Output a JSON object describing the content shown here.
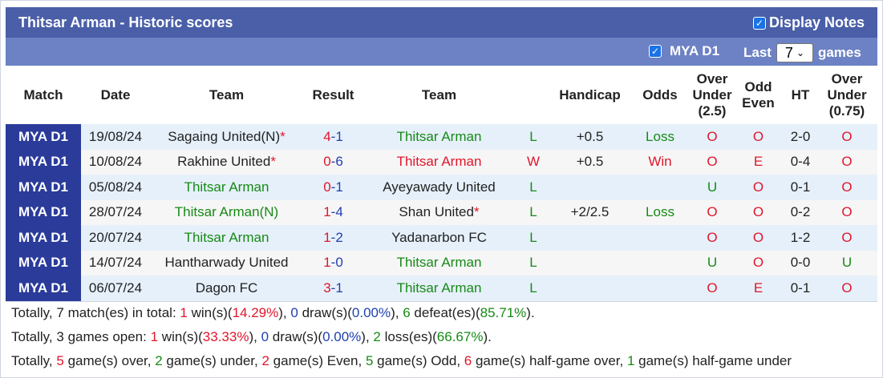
{
  "header": {
    "title": "Thitsar Arman - Historic scores",
    "display_notes_label": "Display Notes",
    "display_notes_checked": true
  },
  "filter": {
    "league_label": "MYA D1",
    "league_checked": true,
    "last_label": "Last",
    "games_value": "7",
    "games_label": "games"
  },
  "columns": [
    "Match",
    "Date",
    "Team",
    "Result",
    "Team",
    "",
    "Handicap",
    "Odds",
    "Over Under (2.5)",
    "Odd Even",
    "HT",
    "Over Under (0.75)"
  ],
  "rows": [
    {
      "league": "MYA D1",
      "date": "19/08/24",
      "home": "Sagaing United(N)",
      "home_star": "*",
      "home_color": "normal",
      "score_home": "4",
      "score_away": "1",
      "away": "Thitsar Arman",
      "away_star": "",
      "away_color": "green",
      "wl": "L",
      "handicap": "+0.5",
      "odds": "Loss",
      "ou": "O",
      "oe": "O",
      "ht": "2-0",
      "ou2": "O"
    },
    {
      "league": "MYA D1",
      "date": "10/08/24",
      "home": "Rakhine United",
      "home_star": "*",
      "home_color": "normal",
      "score_home": "0",
      "score_away": "6",
      "away": "Thitsar Arman",
      "away_star": "",
      "away_color": "red",
      "wl": "W",
      "handicap": "+0.5",
      "odds": "Win",
      "ou": "O",
      "oe": "E",
      "ht": "0-4",
      "ou2": "O"
    },
    {
      "league": "MYA D1",
      "date": "05/08/24",
      "home": "Thitsar Arman",
      "home_star": "",
      "home_color": "green",
      "score_home": "0",
      "score_away": "1",
      "away": "Ayeyawady United",
      "away_star": "",
      "away_color": "normal",
      "wl": "L",
      "handicap": "",
      "odds": "",
      "ou": "U",
      "oe": "O",
      "ht": "0-1",
      "ou2": "O"
    },
    {
      "league": "MYA D1",
      "date": "28/07/24",
      "home": "Thitsar Arman(N)",
      "home_star": "",
      "home_color": "green",
      "score_home": "1",
      "score_away": "4",
      "away": "Shan United",
      "away_star": "*",
      "away_color": "normal",
      "wl": "L",
      "handicap": "+2/2.5",
      "odds": "Loss",
      "ou": "O",
      "oe": "O",
      "ht": "0-2",
      "ou2": "O"
    },
    {
      "league": "MYA D1",
      "date": "20/07/24",
      "home": "Thitsar Arman",
      "home_star": "",
      "home_color": "green",
      "score_home": "1",
      "score_away": "2",
      "away": "Yadanarbon FC",
      "away_star": "",
      "away_color": "normal",
      "wl": "L",
      "handicap": "",
      "odds": "",
      "ou": "O",
      "oe": "O",
      "ht": "1-2",
      "ou2": "O"
    },
    {
      "league": "MYA D1",
      "date": "14/07/24",
      "home": "Hantharwady United",
      "home_star": "",
      "home_color": "normal",
      "score_home": "1",
      "score_away": "0",
      "away": "Thitsar Arman",
      "away_star": "",
      "away_color": "green",
      "wl": "L",
      "handicap": "",
      "odds": "",
      "ou": "U",
      "oe": "O",
      "ht": "0-0",
      "ou2": "U"
    },
    {
      "league": "MYA D1",
      "date": "06/07/24",
      "home": "Dagon FC",
      "home_star": "",
      "home_color": "normal",
      "score_home": "3",
      "score_away": "1",
      "away": "Thitsar Arman",
      "away_star": "",
      "away_color": "green",
      "wl": "L",
      "handicap": "",
      "odds": "",
      "ou": "O",
      "oe": "E",
      "ht": "0-1",
      "ou2": "O"
    }
  ],
  "summary": [
    [
      {
        "t": "Totally, ",
        "c": ""
      },
      {
        "t": "7",
        "c": "b"
      },
      {
        "t": " match(es) in total: ",
        "c": ""
      },
      {
        "t": "1",
        "c": "red b"
      },
      {
        "t": " win(s)(",
        "c": ""
      },
      {
        "t": "14.29%",
        "c": "red b"
      },
      {
        "t": "), ",
        "c": ""
      },
      {
        "t": "0",
        "c": "blue b"
      },
      {
        "t": " draw(s)(",
        "c": ""
      },
      {
        "t": "0.00%",
        "c": "blue b"
      },
      {
        "t": "), ",
        "c": ""
      },
      {
        "t": "6",
        "c": "green b"
      },
      {
        "t": " defeat(es)(",
        "c": ""
      },
      {
        "t": "85.71%",
        "c": "green b"
      },
      {
        "t": ").",
        "c": ""
      }
    ],
    [
      {
        "t": "Totally, ",
        "c": ""
      },
      {
        "t": "3",
        "c": "b"
      },
      {
        "t": " games open: ",
        "c": ""
      },
      {
        "t": "1",
        "c": "red b"
      },
      {
        "t": " win(s)(",
        "c": ""
      },
      {
        "t": "33.33%",
        "c": "red b"
      },
      {
        "t": "), ",
        "c": ""
      },
      {
        "t": "0",
        "c": "blue b"
      },
      {
        "t": " draw(s)(",
        "c": ""
      },
      {
        "t": "0.00%",
        "c": "blue b"
      },
      {
        "t": "), ",
        "c": ""
      },
      {
        "t": "2",
        "c": "green b"
      },
      {
        "t": " loss(es)(",
        "c": ""
      },
      {
        "t": "66.67%",
        "c": "green b"
      },
      {
        "t": ").",
        "c": ""
      }
    ],
    [
      {
        "t": "Totally, ",
        "c": ""
      },
      {
        "t": "5",
        "c": "red b"
      },
      {
        "t": " game(s) over, ",
        "c": ""
      },
      {
        "t": "2",
        "c": "green b"
      },
      {
        "t": " game(s) under, ",
        "c": ""
      },
      {
        "t": "2",
        "c": "red b"
      },
      {
        "t": " game(s) Even, ",
        "c": ""
      },
      {
        "t": "5",
        "c": "green b"
      },
      {
        "t": " game(s) Odd, ",
        "c": ""
      },
      {
        "t": "6",
        "c": "red b"
      },
      {
        "t": " game(s) half-game over, ",
        "c": ""
      },
      {
        "t": "1",
        "c": "green b"
      },
      {
        "t": " game(s) half-game under",
        "c": ""
      }
    ]
  ],
  "colors": {
    "title_bg": "#4a5fa8",
    "filter_bg": "#6d82c4",
    "league_bg": "#2a3b9a",
    "row_a": "#e6f0fa",
    "row_b": "#f6f6f6",
    "green": "#168a16",
    "red": "#e0162b",
    "blue": "#1f3fb0"
  }
}
